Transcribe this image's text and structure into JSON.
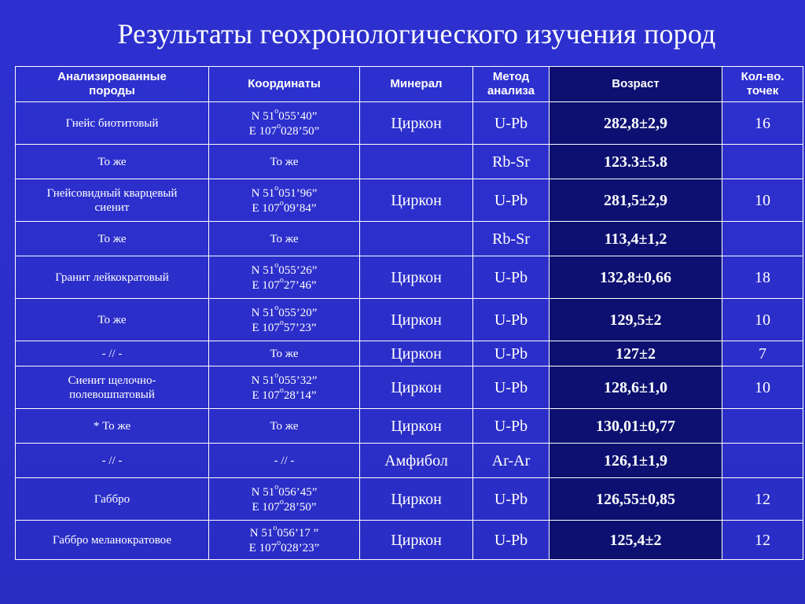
{
  "title": "Результаты геохронологического изучения пород",
  "headers": {
    "rock_line1": "Анализированные",
    "rock_line2": "породы",
    "coord": "Координаты",
    "mineral": "Минерал",
    "method_line1": "Метод",
    "method_line2": "анализа",
    "age": "Возраст",
    "count_line1": "Кол-во.",
    "count_line2": "точек"
  },
  "rows": [
    {
      "rock": [
        "Гнейс биотитовый"
      ],
      "coord": [
        [
          "N 51",
          "о",
          "055’40”"
        ],
        [
          "E 107",
          "о",
          "028’50”"
        ]
      ],
      "mineral": "Циркон",
      "method": "U-Pb",
      "age": "282,8±2,9",
      "count": "16"
    },
    {
      "rock": [
        "То же"
      ],
      "coord": [
        [
          "То же"
        ]
      ],
      "mineral": "",
      "method": "Rb-Sr",
      "age": "123.3±5.8",
      "count": ""
    },
    {
      "rock": [
        "Гнейсовидный кварцевый",
        "сиенит"
      ],
      "coord": [
        [
          "N 51",
          "о",
          "051’96”"
        ],
        [
          "E 107",
          "о",
          "09’84”"
        ]
      ],
      "mineral": "Циркон",
      "method": "U-Pb",
      "age": "281,5±2,9",
      "count": "10"
    },
    {
      "rock": [
        "То же"
      ],
      "coord": [
        [
          "То же"
        ]
      ],
      "mineral": "",
      "method": "Rb-Sr",
      "age": "113,4±1,2",
      "count": ""
    },
    {
      "rock": [
        "Гранит лейкократовый"
      ],
      "coord": [
        [
          "N 51",
          "о",
          "055’26”"
        ],
        [
          "E 107",
          "о",
          "27’46”"
        ]
      ],
      "mineral": "Циркон",
      "method": "U-Pb",
      "age": "132,8±0,66",
      "count": "18"
    },
    {
      "rock": [
        "То же"
      ],
      "coord": [
        [
          "N 51",
          "о",
          "055’20”"
        ],
        [
          "E 107",
          "о",
          "57’23”"
        ]
      ],
      "mineral": "Циркон",
      "method": "U-Pb",
      "age": "129,5±2",
      "count": "10"
    },
    {
      "rock": [
        "- // -"
      ],
      "coord": [
        [
          "То же"
        ]
      ],
      "mineral": "Циркон",
      "method": "U-Pb",
      "age": "127±2",
      "count": "7"
    },
    {
      "rock": [
        "Сиенит щелочно-",
        "полевошпатовый"
      ],
      "coord": [
        [
          "N 51",
          "о",
          "055’32”"
        ],
        [
          "E 107",
          "о",
          "28’14”"
        ]
      ],
      "mineral": "Циркон",
      "method": "U-Pb",
      "age": "128,6±1,0",
      "count": "10"
    },
    {
      "rock": [
        "* То же"
      ],
      "coord": [
        [
          "То же"
        ]
      ],
      "mineral": "Циркон",
      "method": "U-Pb",
      "age": "130,01±0,77",
      "count": ""
    },
    {
      "rock": [
        "- // -"
      ],
      "coord": [
        [
          "- // -"
        ]
      ],
      "mineral": "Амфибол",
      "method": "Ar-Ar",
      "age": "126,1±1,9",
      "count": ""
    },
    {
      "rock": [
        "Габбро"
      ],
      "coord": [
        [
          "N 51",
          "о",
          "056’45”"
        ],
        [
          "E 107",
          "о",
          "28’50”"
        ]
      ],
      "mineral": "Циркон",
      "method": "U-Pb",
      "age": "126,55±0,85",
      "count": "12"
    },
    {
      "rock": [
        "Габбро меланократовое"
      ],
      "coord": [
        [
          "N 51",
          "о",
          "056’17 ”"
        ],
        [
          "E 107",
          "о",
          "028’23”"
        ]
      ],
      "mineral": "Циркон",
      "method": "U-Pb",
      "age": "125,4±2",
      "count": "12"
    }
  ],
  "colors": {
    "background": "#2b2ec6",
    "age_column": "#0d1070",
    "text": "#ffffff"
  }
}
